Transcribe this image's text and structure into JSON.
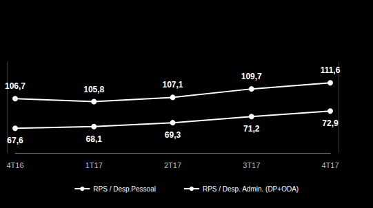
{
  "chart_data": {
    "type": "line",
    "categories": [
      "4T16",
      "1T17",
      "2T17",
      "3T17",
      "4T17"
    ],
    "series": [
      {
        "name": "RPS / Desp.Pessoal",
        "color": "#ffffff",
        "marker": "circle",
        "values": [
          106.7,
          105.8,
          107.1,
          109.7,
          111.6
        ],
        "value_labels": [
          "106,7",
          "105,8",
          "107,1",
          "109,7",
          "111,6"
        ]
      },
      {
        "name": "RPS / Desp. Admin. (DP+ODA)",
        "color": "#ffffff",
        "marker": "circle",
        "axis": "y2",
        "values": [
          67.6,
          68.1,
          69.3,
          71.2,
          72.9
        ],
        "value_labels": [
          "67,6",
          "68,1",
          "69,3",
          "71,2",
          "72,9"
        ]
      }
    ],
    "ylim": [
      90,
      118
    ],
    "y2lim": [
      60,
      88
    ],
    "data_labels": true,
    "tick_labels": "x",
    "grid": false,
    "legend": "bottom"
  }
}
